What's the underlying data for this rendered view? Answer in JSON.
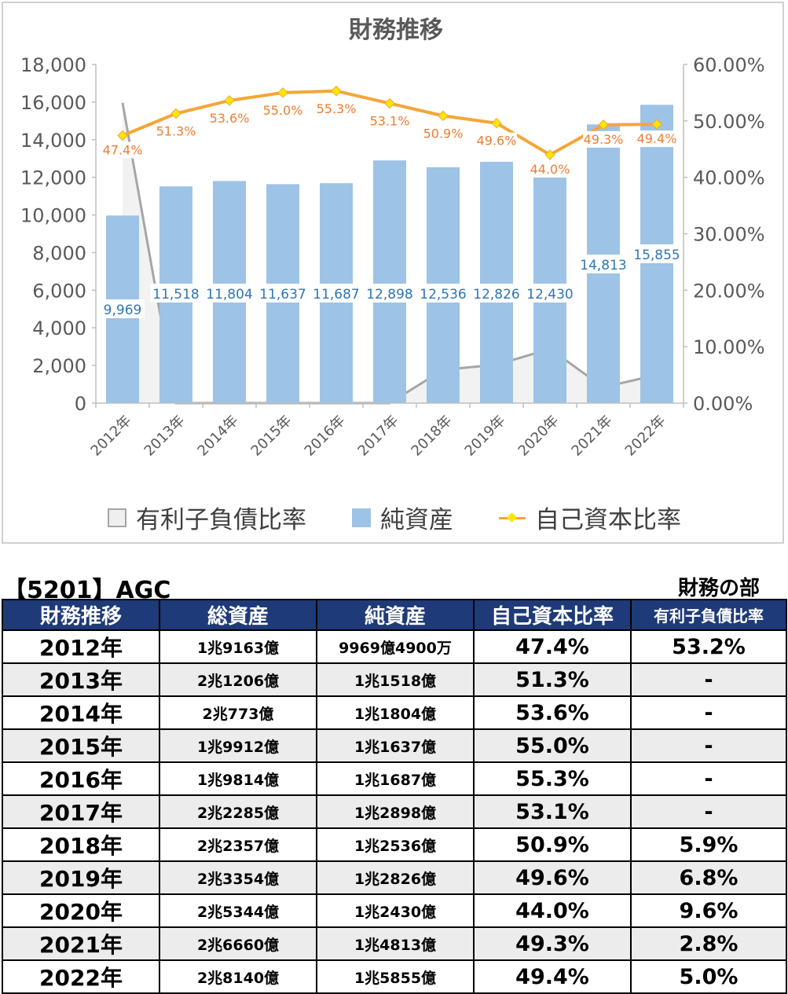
{
  "chart_data": {
    "type": "bar",
    "title": "財務推移",
    "categories": [
      "2012年",
      "2013年",
      "2014年",
      "2015年",
      "2016年",
      "2017年",
      "2018年",
      "2019年",
      "2020年",
      "2021年",
      "2022年"
    ],
    "series": [
      {
        "name": "有利子負債比率",
        "kind": "area",
        "axis": "right",
        "color": "#a6a6a6",
        "values": [
          53.2,
          0,
          0,
          0,
          0,
          0,
          5.9,
          6.8,
          9.6,
          2.8,
          5.0
        ]
      },
      {
        "name": "純資産",
        "kind": "bar",
        "axis": "left",
        "color": "#9dc3e6",
        "values": [
          9969,
          11518,
          11804,
          11637,
          11687,
          12898,
          12536,
          12826,
          12430,
          14813,
          15855
        ],
        "labels": [
          "9,969",
          "11,518",
          "11,804",
          "11,637",
          "11,687",
          "12,898",
          "12,536",
          "12,826",
          "12,430",
          "14,813",
          "15,855"
        ]
      },
      {
        "name": "自己資本比率",
        "kind": "line",
        "axis": "right",
        "color": "#f4a637",
        "values": [
          47.4,
          51.3,
          53.6,
          55.0,
          55.3,
          53.1,
          50.9,
          49.6,
          44.0,
          49.3,
          49.4
        ],
        "labels": [
          "47.4%",
          "51.3%",
          "53.6%",
          "55.0%",
          "55.3%",
          "53.1%",
          "50.9%",
          "49.6%",
          "44.0%",
          "49.3%",
          "49.4%"
        ]
      }
    ],
    "ylim_left": [
      0,
      18000
    ],
    "yticks_left": [
      "0",
      "2,000",
      "4,000",
      "6,000",
      "8,000",
      "10,000",
      "12,000",
      "14,000",
      "16,000",
      "18,000"
    ],
    "ylim_right": [
      0,
      60
    ],
    "yticks_right": [
      "0.00%",
      "10.00%",
      "20.00%",
      "30.00%",
      "40.00%",
      "50.00%",
      "60.00%"
    ],
    "legend_position": "bottom",
    "grid": false
  },
  "table": {
    "company": "【5201】AGC",
    "section": "財務の部",
    "headers": [
      "財務推移",
      "総資産",
      "純資産",
      "自己資本比率",
      "有利子負債比率"
    ],
    "rows": [
      [
        "2012年",
        "1兆9163億",
        "9969億4900万",
        "47.4%",
        "53.2%"
      ],
      [
        "2013年",
        "2兆1206億",
        "1兆1518億",
        "51.3%",
        "-"
      ],
      [
        "2014年",
        "2兆773億",
        "1兆1804億",
        "53.6%",
        "-"
      ],
      [
        "2015年",
        "1兆9912億",
        "1兆1637億",
        "55.0%",
        "-"
      ],
      [
        "2016年",
        "1兆9814億",
        "1兆1687億",
        "55.3%",
        "-"
      ],
      [
        "2017年",
        "2兆2285億",
        "1兆2898億",
        "53.1%",
        "-"
      ],
      [
        "2018年",
        "2兆2357億",
        "1兆2536億",
        "50.9%",
        "5.9%"
      ],
      [
        "2019年",
        "2兆3354億",
        "1兆2826億",
        "49.6%",
        "6.8%"
      ],
      [
        "2020年",
        "2兆5344億",
        "1兆2430億",
        "44.0%",
        "9.6%"
      ],
      [
        "2021年",
        "2兆6660億",
        "1兆4813億",
        "49.3%",
        "2.8%"
      ],
      [
        "2022年",
        "2兆8140億",
        "1兆5855億",
        "49.4%",
        "5.0%"
      ]
    ]
  }
}
